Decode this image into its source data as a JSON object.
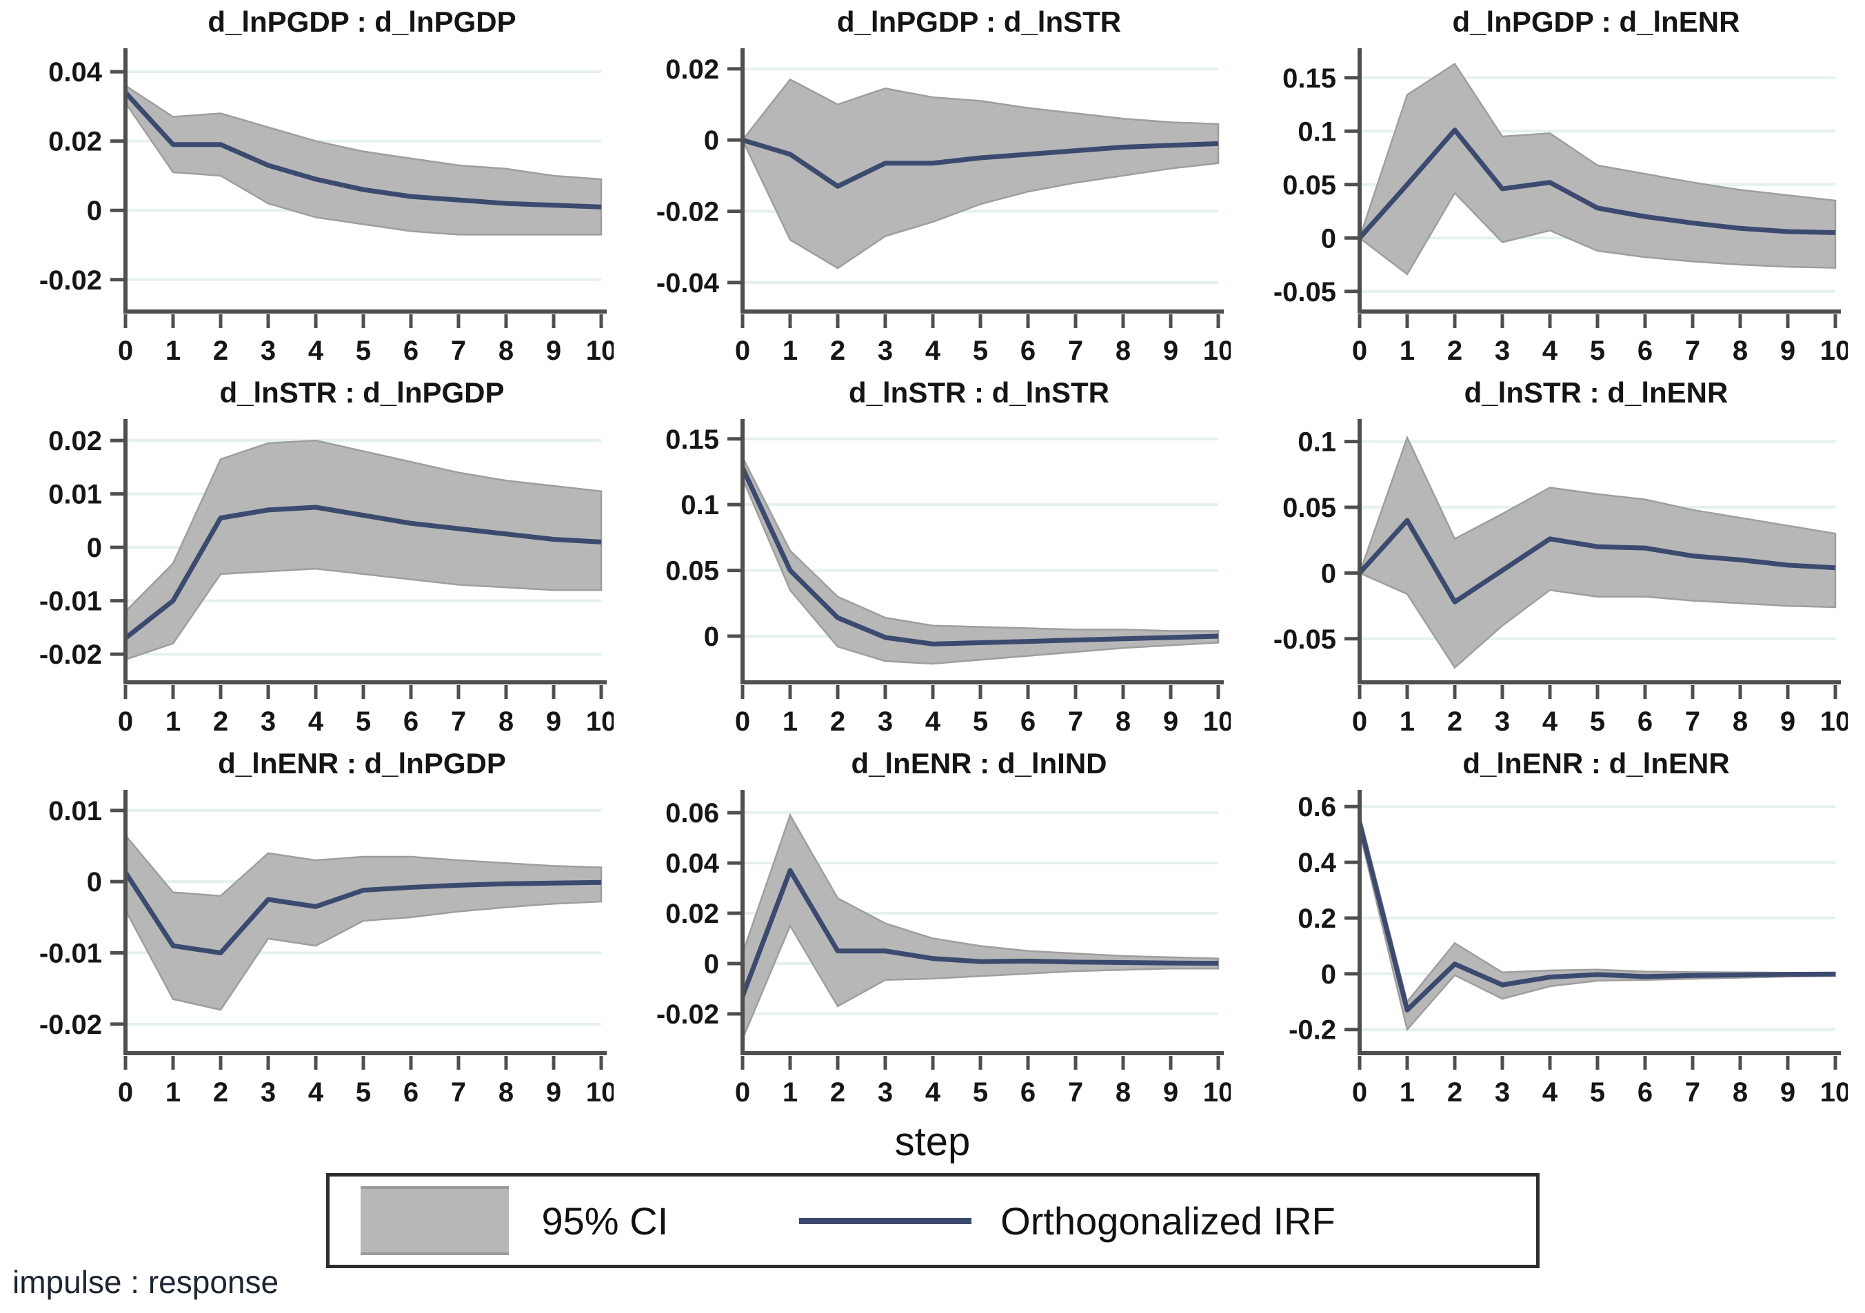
{
  "figure": {
    "xlabel": "step",
    "footnote": "impulse : response",
    "legend": {
      "ci_label": "95% CI",
      "irf_label": "Orthogonalized IRF"
    },
    "colors": {
      "irf_line": "#3b4a6e",
      "ci_fill": "#b7b7b7",
      "ci_edge": "#9e9e9e",
      "grid": "#e4f1ee",
      "axis": "#4f4f4f",
      "text": "#161616"
    },
    "x_tick_labels": [
      "0",
      "1",
      "2",
      "3",
      "4",
      "5",
      "6",
      "7",
      "8",
      "9",
      "10"
    ]
  },
  "chart_data": [
    {
      "type": "line",
      "title": "d_lnPGDP : d_lnPGDP",
      "impulse": "d_lnPGDP",
      "response": "d_lnPGDP",
      "x": [
        0,
        1,
        2,
        3,
        4,
        5,
        6,
        7,
        8,
        9,
        10
      ],
      "ylim": [
        -0.028,
        0.046
      ],
      "yticks": {
        "values": [
          0.04,
          0.02,
          0,
          -0.02
        ],
        "labels": [
          "0.04",
          "0.02",
          "0",
          "-0.02"
        ]
      },
      "series": [
        {
          "name": "Orthogonalized IRF",
          "values": [
            0.034,
            0.019,
            0.019,
            0.013,
            0.009,
            0.006,
            0.004,
            0.003,
            0.002,
            0.0015,
            0.001
          ]
        },
        {
          "name": "95% CI upper",
          "values": [
            0.036,
            0.027,
            0.028,
            0.024,
            0.02,
            0.017,
            0.015,
            0.013,
            0.012,
            0.01,
            0.009
          ]
        },
        {
          "name": "95% CI lower",
          "values": [
            0.031,
            0.011,
            0.01,
            0.002,
            -0.002,
            -0.004,
            -0.006,
            -0.007,
            -0.007,
            -0.007,
            -0.007
          ]
        }
      ]
    },
    {
      "type": "line",
      "title": "d_lnPGDP : d_lnSTR",
      "impulse": "d_lnPGDP",
      "response": "d_lnSTR",
      "x": [
        0,
        1,
        2,
        3,
        4,
        5,
        6,
        7,
        8,
        9,
        10
      ],
      "ylim": [
        -0.047,
        0.025
      ],
      "yticks": {
        "values": [
          0.02,
          0,
          -0.02,
          -0.04
        ],
        "labels": [
          "0.02",
          "0",
          "-0.02",
          "-0.04"
        ]
      },
      "series": [
        {
          "name": "Orthogonalized IRF",
          "values": [
            0,
            -0.004,
            -0.013,
            -0.0065,
            -0.0065,
            -0.005,
            -0.004,
            -0.003,
            -0.002,
            -0.0015,
            -0.001
          ]
        },
        {
          "name": "95% CI upper",
          "values": [
            0,
            0.017,
            0.01,
            0.0145,
            0.012,
            0.011,
            0.009,
            0.0075,
            0.006,
            0.005,
            0.0045
          ]
        },
        {
          "name": "95% CI lower",
          "values": [
            0,
            -0.028,
            -0.036,
            -0.027,
            -0.023,
            -0.018,
            -0.0145,
            -0.012,
            -0.01,
            -0.008,
            -0.0065
          ]
        }
      ]
    },
    {
      "type": "line",
      "title": "d_lnPGDP : d_lnENR",
      "impulse": "d_lnPGDP",
      "response": "d_lnENR",
      "x": [
        0,
        1,
        2,
        3,
        4,
        5,
        6,
        7,
        8,
        9,
        10
      ],
      "ylim": [
        -0.065,
        0.175
      ],
      "yticks": {
        "values": [
          0.15,
          0.1,
          0.05,
          0,
          -0.05
        ],
        "labels": [
          "0.15",
          "0.1",
          "0.05",
          "0",
          "-0.05"
        ]
      },
      "series": [
        {
          "name": "Orthogonalized IRF",
          "values": [
            0,
            0.05,
            0.101,
            0.046,
            0.052,
            0.028,
            0.02,
            0.014,
            0.009,
            0.006,
            0.005
          ]
        },
        {
          "name": "95% CI upper",
          "values": [
            0,
            0.134,
            0.163,
            0.095,
            0.098,
            0.068,
            0.06,
            0.052,
            0.045,
            0.04,
            0.035
          ]
        },
        {
          "name": "95% CI lower",
          "values": [
            0,
            -0.034,
            0.042,
            -0.004,
            0.007,
            -0.012,
            -0.018,
            -0.022,
            -0.025,
            -0.027,
            -0.028
          ]
        }
      ]
    },
    {
      "type": "line",
      "title": "d_lnSTR : d_lnPGDP",
      "impulse": "d_lnSTR",
      "response": "d_lnPGDP",
      "x": [
        0,
        1,
        2,
        3,
        4,
        5,
        6,
        7,
        8,
        9,
        10
      ],
      "ylim": [
        -0.0245,
        0.0235
      ],
      "yticks": {
        "values": [
          0.02,
          0.01,
          0,
          -0.01,
          -0.02
        ],
        "labels": [
          "0.02",
          "0.01",
          "0",
          "-0.01",
          "-0.02"
        ]
      },
      "series": [
        {
          "name": "Orthogonalized IRF",
          "values": [
            -0.017,
            -0.01,
            0.0055,
            0.007,
            0.0075,
            0.006,
            0.0045,
            0.0035,
            0.0025,
            0.0015,
            0.001
          ]
        },
        {
          "name": "95% CI upper",
          "values": [
            -0.012,
            -0.003,
            0.0165,
            0.0195,
            0.02,
            0.018,
            0.016,
            0.014,
            0.0125,
            0.0115,
            0.0105
          ]
        },
        {
          "name": "95% CI lower",
          "values": [
            -0.021,
            -0.018,
            -0.005,
            -0.0045,
            -0.004,
            -0.005,
            -0.006,
            -0.007,
            -0.0075,
            -0.008,
            -0.008
          ]
        }
      ]
    },
    {
      "type": "line",
      "title": "d_lnSTR : d_lnSTR",
      "impulse": "d_lnSTR",
      "response": "d_lnSTR",
      "x": [
        0,
        1,
        2,
        3,
        4,
        5,
        6,
        7,
        8,
        9,
        10
      ],
      "ylim": [
        -0.032,
        0.163
      ],
      "yticks": {
        "values": [
          0.15,
          0.1,
          0.05,
          0
        ],
        "labels": [
          "0.15",
          "0.1",
          "0.05",
          "0"
        ]
      },
      "series": [
        {
          "name": "Orthogonalized IRF",
          "values": [
            0.128,
            0.05,
            0.014,
            -0.001,
            -0.006,
            -0.005,
            -0.004,
            -0.003,
            -0.002,
            -0.001,
            0
          ]
        },
        {
          "name": "95% CI upper",
          "values": [
            0.136,
            0.065,
            0.03,
            0.014,
            0.008,
            0.007,
            0.006,
            0.005,
            0.005,
            0.004,
            0.004
          ]
        },
        {
          "name": "95% CI lower",
          "values": [
            0.12,
            0.035,
            -0.008,
            -0.019,
            -0.021,
            -0.018,
            -0.015,
            -0.012,
            -0.009,
            -0.007,
            -0.005
          ]
        }
      ]
    },
    {
      "type": "line",
      "title": "d_lnSTR : d_lnENR",
      "impulse": "d_lnSTR",
      "response": "d_lnENR",
      "x": [
        0,
        1,
        2,
        3,
        4,
        5,
        6,
        7,
        8,
        9,
        10
      ],
      "ylim": [
        -0.08,
        0.115
      ],
      "yticks": {
        "values": [
          0.1,
          0.05,
          0,
          -0.05
        ],
        "labels": [
          "0.1",
          "0.05",
          "0",
          "-0.05"
        ]
      },
      "series": [
        {
          "name": "Orthogonalized IRF",
          "values": [
            0,
            0.04,
            -0.022,
            0.002,
            0.026,
            0.02,
            0.019,
            0.013,
            0.01,
            0.006,
            0.004
          ]
        },
        {
          "name": "95% CI upper",
          "values": [
            0,
            0.103,
            0.026,
            0.045,
            0.065,
            0.06,
            0.056,
            0.048,
            0.042,
            0.036,
            0.03
          ]
        },
        {
          "name": "95% CI lower",
          "values": [
            0,
            -0.016,
            -0.072,
            -0.04,
            -0.013,
            -0.018,
            -0.018,
            -0.021,
            -0.023,
            -0.025,
            -0.026
          ]
        }
      ]
    },
    {
      "type": "line",
      "title": "d_lnENR : d_lnPGDP",
      "impulse": "d_lnENR",
      "response": "d_lnPGDP",
      "x": [
        0,
        1,
        2,
        3,
        4,
        5,
        6,
        7,
        8,
        9,
        10
      ],
      "ylim": [
        -0.0235,
        0.0125
      ],
      "yticks": {
        "values": [
          0.01,
          0,
          -0.01,
          -0.02
        ],
        "labels": [
          "0.01",
          "0",
          "-0.01",
          "-0.02"
        ]
      },
      "series": [
        {
          "name": "Orthogonalized IRF",
          "values": [
            0.0013,
            -0.009,
            -0.01,
            -0.0025,
            -0.0035,
            -0.0012,
            -0.0008,
            -0.0005,
            -0.0003,
            -0.0002,
            -0.0001
          ]
        },
        {
          "name": "95% CI upper",
          "values": [
            0.0065,
            -0.0015,
            -0.002,
            0.004,
            0.003,
            0.0035,
            0.0035,
            0.003,
            0.0026,
            0.0022,
            0.002
          ]
        },
        {
          "name": "95% CI lower",
          "values": [
            -0.004,
            -0.0165,
            -0.018,
            -0.008,
            -0.009,
            -0.0055,
            -0.005,
            -0.0042,
            -0.0036,
            -0.0031,
            -0.0028
          ]
        }
      ]
    },
    {
      "type": "line",
      "title": "d_lnENR : d_lnIND",
      "impulse": "d_lnENR",
      "response": "d_lnIND",
      "x": [
        0,
        1,
        2,
        3,
        4,
        5,
        6,
        7,
        8,
        9,
        10
      ],
      "ylim": [
        -0.034,
        0.068
      ],
      "yticks": {
        "values": [
          0.06,
          0.04,
          0.02,
          0,
          -0.02
        ],
        "labels": [
          "0.06",
          "0.04",
          "0.02",
          "0",
          "-0.02"
        ]
      },
      "series": [
        {
          "name": "Orthogonalized IRF",
          "values": [
            -0.013,
            0.037,
            0.005,
            0.005,
            0.002,
            0.0008,
            0.001,
            0.0006,
            0.0004,
            0.0002,
            0.0001
          ]
        },
        {
          "name": "95% CI upper",
          "values": [
            0.004,
            0.059,
            0.026,
            0.016,
            0.01,
            0.007,
            0.005,
            0.004,
            0.003,
            0.0025,
            0.002
          ]
        },
        {
          "name": "95% CI lower",
          "values": [
            -0.03,
            0.015,
            -0.017,
            -0.0065,
            -0.006,
            -0.005,
            -0.004,
            -0.003,
            -0.0025,
            -0.002,
            -0.002
          ]
        }
      ]
    },
    {
      "type": "line",
      "title": "d_lnENR : d_lnENR",
      "impulse": "d_lnENR",
      "response": "d_lnENR",
      "x": [
        0,
        1,
        2,
        3,
        4,
        5,
        6,
        7,
        8,
        9,
        10
      ],
      "ylim": [
        -0.27,
        0.65
      ],
      "yticks": {
        "values": [
          0.6,
          0.4,
          0.2,
          0,
          -0.2
        ],
        "labels": [
          "0.6",
          "0.4",
          "0.2",
          "0",
          "-0.2"
        ]
      },
      "series": [
        {
          "name": "Orthogonalized IRF",
          "values": [
            0.54,
            -0.13,
            0.035,
            -0.04,
            -0.012,
            -0.003,
            -0.01,
            -0.006,
            -0.004,
            -0.002,
            -0.001
          ]
        },
        {
          "name": "95% CI upper",
          "values": [
            0.57,
            -0.1,
            0.11,
            0.005,
            0.012,
            0.015,
            0.008,
            0.006,
            0.005,
            0.004,
            0.004
          ]
        },
        {
          "name": "95% CI lower",
          "values": [
            0.51,
            -0.2,
            -0.005,
            -0.09,
            -0.045,
            -0.025,
            -0.022,
            -0.018,
            -0.014,
            -0.01,
            -0.008
          ]
        }
      ]
    }
  ]
}
